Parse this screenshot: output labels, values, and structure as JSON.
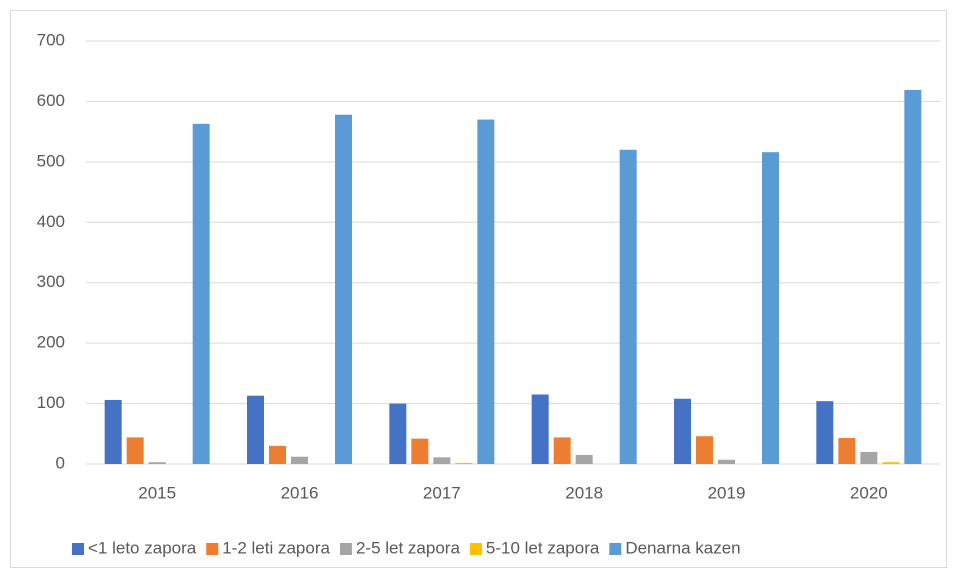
{
  "chart_data": {
    "type": "bar",
    "categories": [
      "2015",
      "2016",
      "2017",
      "2018",
      "2019",
      "2020"
    ],
    "series": [
      {
        "name": "<1 leto zapora",
        "color": "#4472c4",
        "values": [
          106,
          113,
          100,
          115,
          108,
          104
        ]
      },
      {
        "name": "1-2 leti zapora",
        "color": "#ed7d31",
        "values": [
          44,
          30,
          42,
          44,
          46,
          43
        ]
      },
      {
        "name": "2-5 let zapora",
        "color": "#a5a5a5",
        "values": [
          3,
          12,
          11,
          15,
          7,
          20
        ]
      },
      {
        "name": "5-10 let zapora",
        "color": "#ffc000",
        "values": [
          0,
          0,
          2,
          0,
          0,
          3
        ]
      },
      {
        "name": "Denarna kazen",
        "color": "#5b9bd5",
        "values": [
          563,
          578,
          570,
          520,
          516,
          619
        ]
      }
    ],
    "ylim": [
      0,
      700
    ],
    "yticks": [
      0,
      100,
      200,
      300,
      400,
      500,
      600,
      700
    ],
    "grid": true,
    "legend": "bottom"
  }
}
